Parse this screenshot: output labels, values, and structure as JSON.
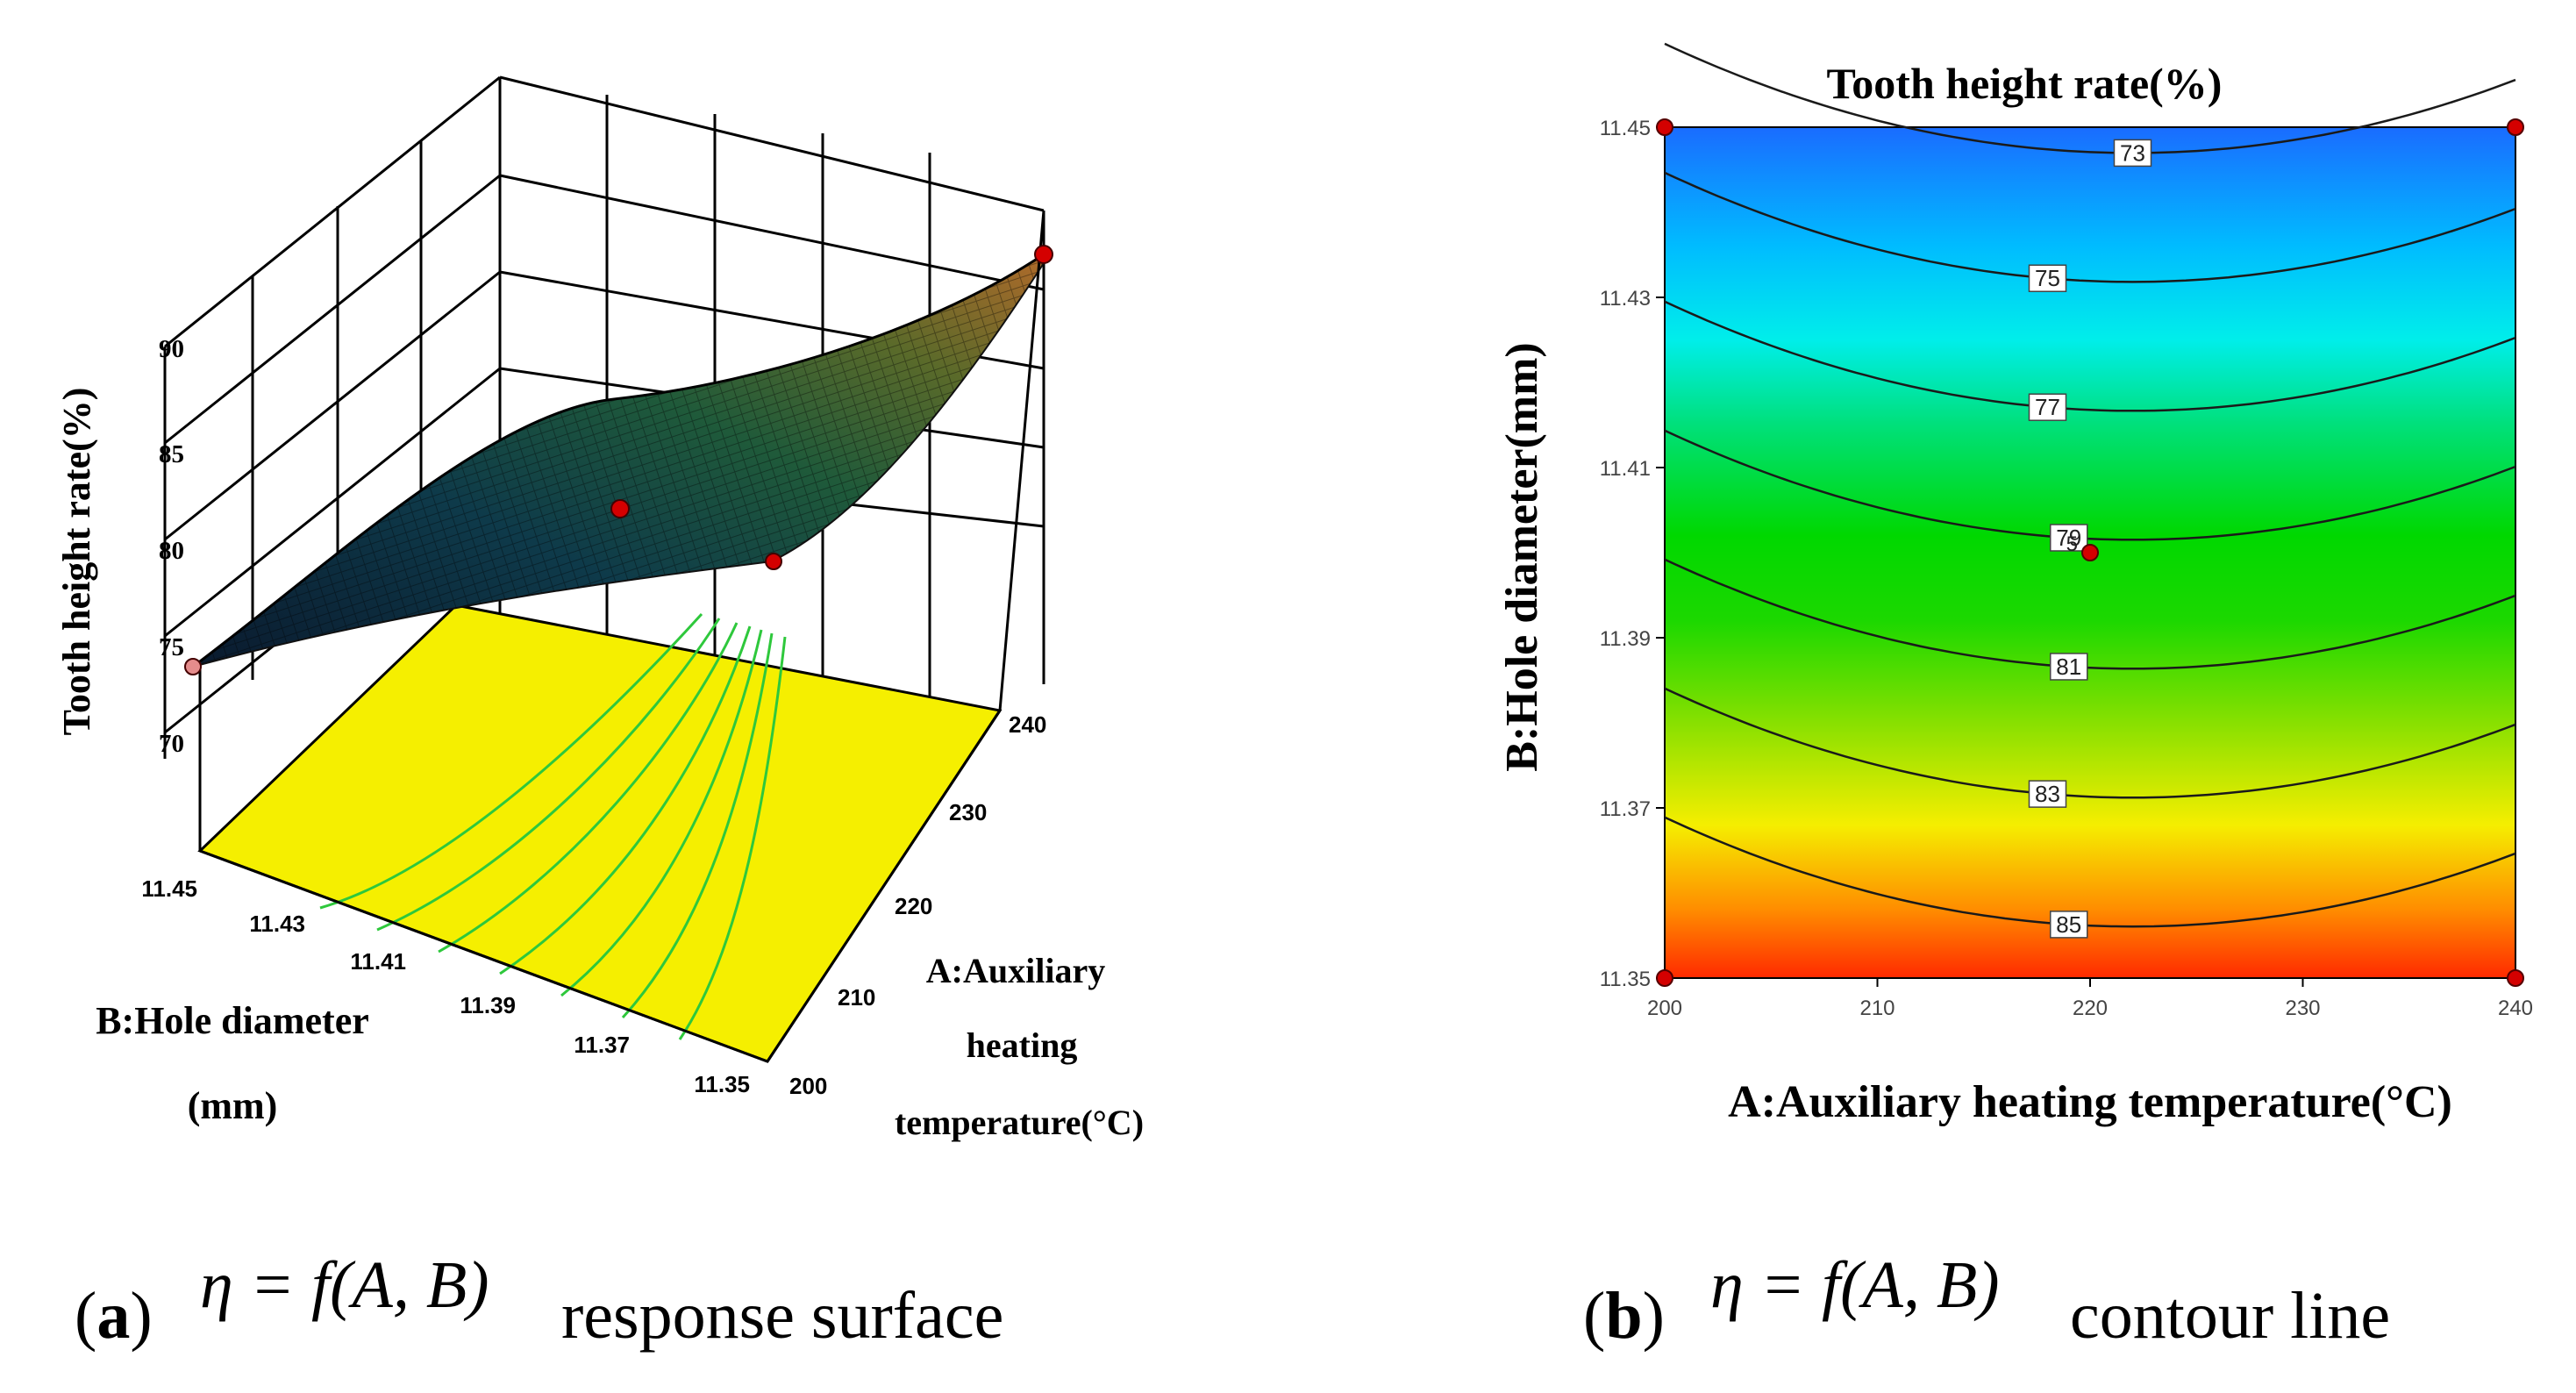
{
  "chart_data": [
    {
      "id": "a",
      "type": "surface3d",
      "panel_label": "a",
      "caption_formula": "η = f(A, B)",
      "caption_text": "response surface",
      "zlabel": "Tooth height rate(%)",
      "zticks": [
        "70",
        "75",
        "80",
        "85",
        "90"
      ],
      "xlabel_lines": [
        "A:Auxiliary",
        "heating",
        "temperature(°C)"
      ],
      "xticks": [
        "200",
        "210",
        "220",
        "230",
        "240"
      ],
      "ylabel_lines": [
        "B:Hole diameter",
        "(mm)"
      ],
      "yticks": [
        "11.45",
        "11.43",
        "11.41",
        "11.39",
        "11.37",
        "11.35"
      ],
      "x_range": [
        200,
        240
      ],
      "y_range": [
        11.35,
        11.45
      ],
      "z_range": [
        70,
        90
      ],
      "points": [
        {
          "A": 200,
          "B": 11.45,
          "rate": 74
        },
        {
          "A": 220,
          "B": 11.4,
          "rate": 79.3
        },
        {
          "A": 240,
          "B": 11.35,
          "rate": 89.6
        },
        {
          "A": 225,
          "B": 11.38,
          "rate": 82
        }
      ]
    },
    {
      "id": "b",
      "type": "contour",
      "panel_label": "b",
      "title": "Tooth height rate(%)",
      "caption_formula": "η = f(A, B)",
      "caption_text": "contour line",
      "xlabel": "A:Auxiliary heating temperature(°C)",
      "ylabel": "B:Hole diameter(mm)",
      "xticks": [
        "200",
        "210",
        "220",
        "230",
        "240"
      ],
      "yticks": [
        "11.35",
        "11.37",
        "11.39",
        "11.41",
        "11.43",
        "11.45"
      ],
      "x_range": [
        200,
        240
      ],
      "y_range": [
        11.35,
        11.45
      ],
      "z_range": [
        70,
        90
      ],
      "levels": [
        73,
        75,
        77,
        79,
        81,
        83,
        85
      ],
      "level_labels": [
        "73",
        "75",
        "77",
        "79",
        "81",
        "83",
        "85"
      ],
      "center_point": {
        "A": 220,
        "B": 11.4,
        "label": "5"
      },
      "corner_points": [
        {
          "A": 200,
          "B": 11.35
        },
        {
          "A": 240,
          "B": 11.35
        },
        {
          "A": 200,
          "B": 11.45
        },
        {
          "A": 240,
          "B": 11.45
        }
      ]
    }
  ]
}
